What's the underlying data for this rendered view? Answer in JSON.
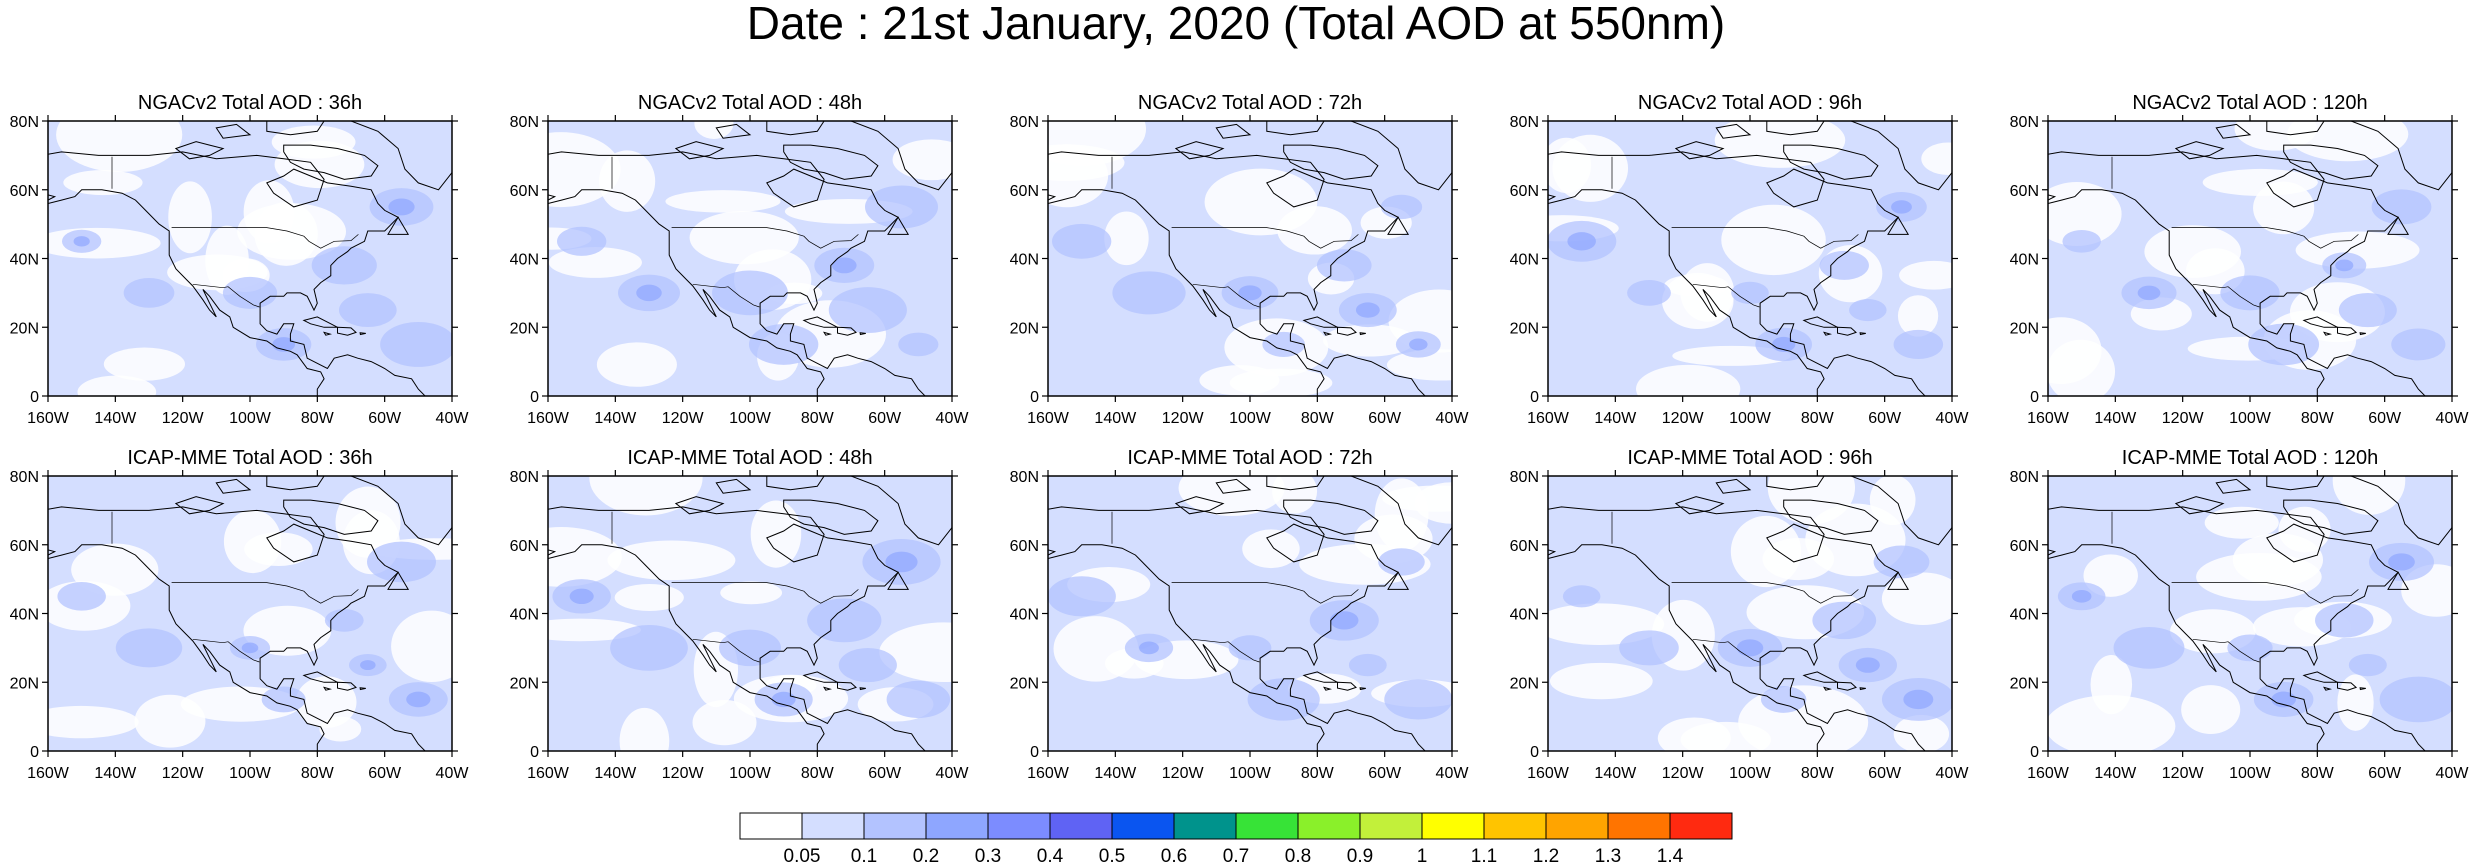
{
  "title": "Date : 21st January, 2020 (Total AOD at 550nm)",
  "panels": [
    {
      "id": "ngac-36",
      "title": "NGACv2 Total AOD : 36h"
    },
    {
      "id": "ngac-48",
      "title": "NGACv2 Total AOD : 48h"
    },
    {
      "id": "ngac-72",
      "title": "NGACv2 Total AOD : 72h"
    },
    {
      "id": "ngac-96",
      "title": "NGACv2 Total AOD : 96h"
    },
    {
      "id": "ngac-120",
      "title": "NGACv2 Total AOD : 120h"
    },
    {
      "id": "icap-36",
      "title": "ICAP-MME Total AOD : 36h"
    },
    {
      "id": "icap-48",
      "title": "ICAP-MME Total AOD : 48h"
    },
    {
      "id": "icap-72",
      "title": "ICAP-MME Total AOD : 72h"
    },
    {
      "id": "icap-96",
      "title": "ICAP-MME Total AOD : 96h"
    },
    {
      "id": "icap-120",
      "title": "ICAP-MME Total AOD : 120h"
    }
  ],
  "map_extent": {
    "lon": [
      -160,
      -40
    ],
    "lat": [
      0,
      80
    ]
  },
  "lon_ticks": [
    {
      "value": -160,
      "label": "160W"
    },
    {
      "value": -140,
      "label": "140W"
    },
    {
      "value": -120,
      "label": "120W"
    },
    {
      "value": -100,
      "label": "100W"
    },
    {
      "value": -80,
      "label": "80W"
    },
    {
      "value": -60,
      "label": "60W"
    },
    {
      "value": -40,
      "label": "40W"
    }
  ],
  "lat_ticks": [
    {
      "value": 0,
      "label": "0"
    },
    {
      "value": 20,
      "label": "20N"
    },
    {
      "value": 40,
      "label": "40N"
    },
    {
      "value": 60,
      "label": "60N"
    },
    {
      "value": 80,
      "label": "80N"
    }
  ],
  "colorbar": {
    "colors": [
      "#ffffff",
      "#d4deff",
      "#b3c3ff",
      "#8ea6ff",
      "#7c8cff",
      "#5f63f4",
      "#0a55f0",
      "#00938c",
      "#37e337",
      "#8af02a",
      "#c2f03a",
      "#ffff00",
      "#ffc400",
      "#ffa400",
      "#ff7400",
      "#ff2a10"
    ],
    "labels": [
      "0.05",
      "0.1",
      "0.2",
      "0.3",
      "0.4",
      "0.5",
      "0.6",
      "0.7",
      "0.8",
      "0.9",
      "1",
      "1.1",
      "1.2",
      "1.3",
      "1.4"
    ]
  }
}
